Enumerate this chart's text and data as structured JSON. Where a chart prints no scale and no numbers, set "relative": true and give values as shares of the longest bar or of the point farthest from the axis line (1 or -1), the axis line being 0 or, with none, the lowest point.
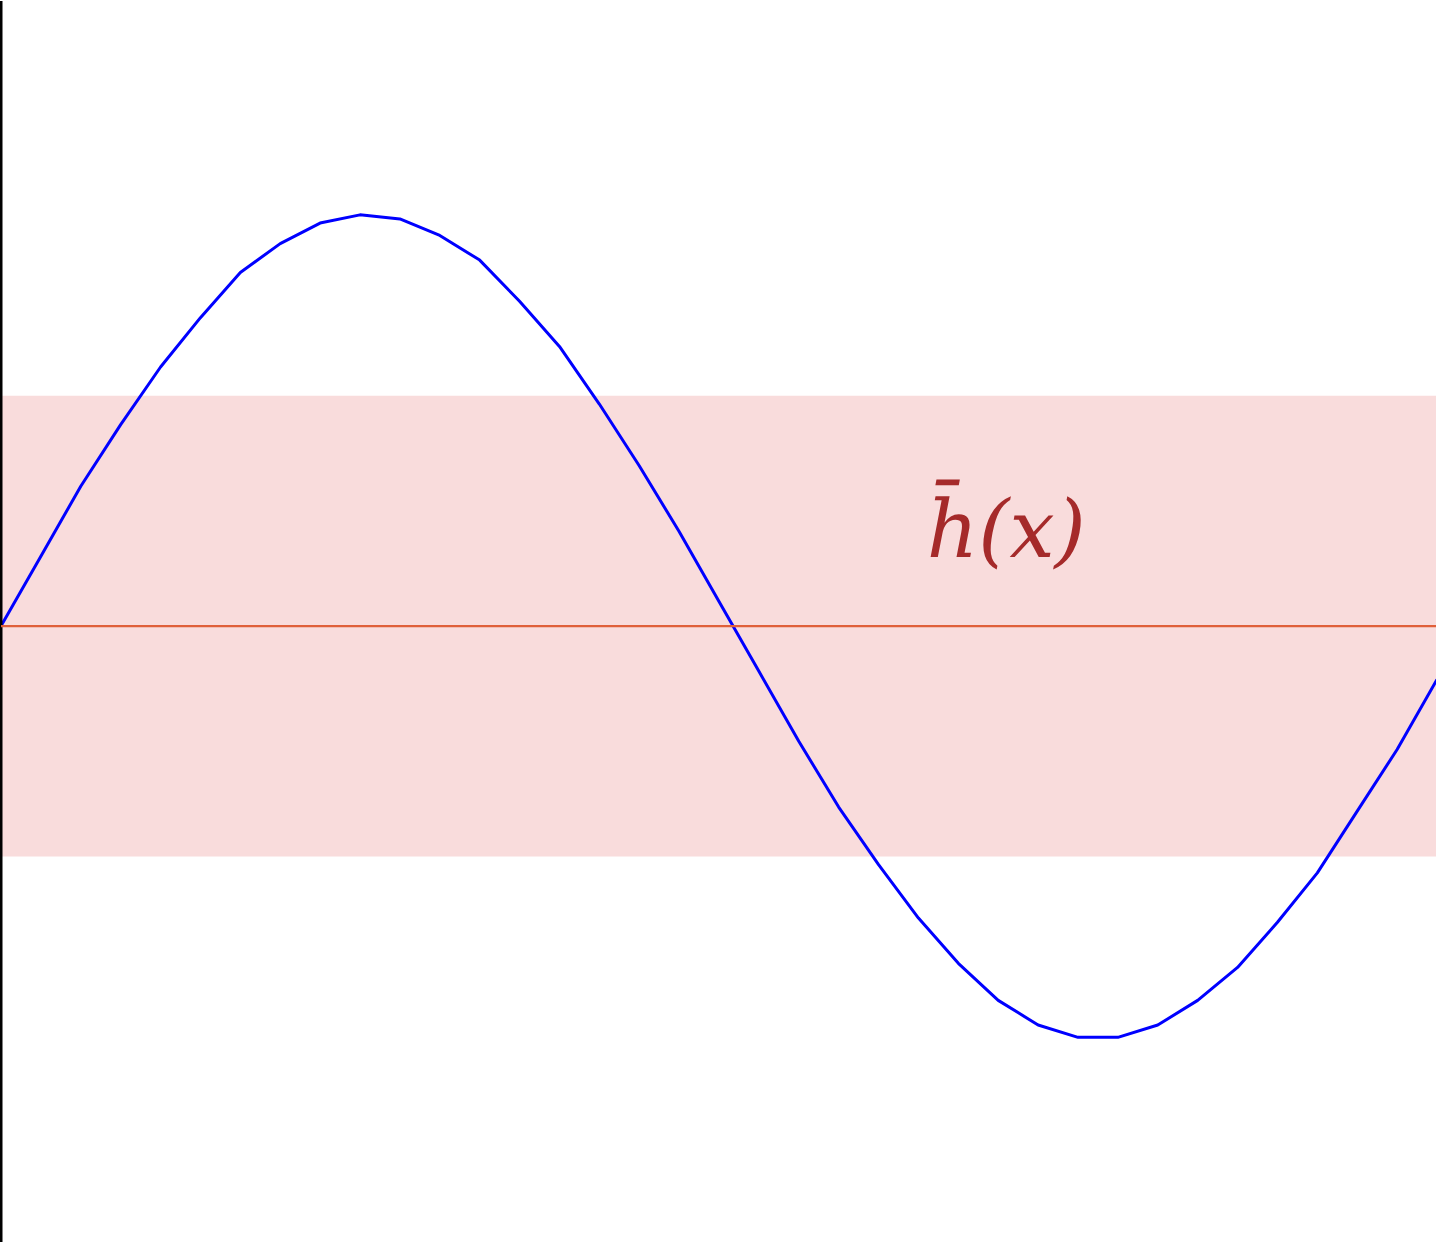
{
  "chart_data": {
    "type": "line",
    "relative": true,
    "grid": false,
    "categories": [
      null,
      null,
      null,
      null,
      null,
      null,
      null,
      null,
      null,
      null,
      null,
      null,
      null,
      null,
      null,
      null,
      null,
      null,
      null,
      null,
      null,
      null,
      null,
      null,
      null,
      null,
      null,
      null,
      null,
      null,
      null,
      null,
      null,
      null,
      null,
      null,
      null
    ],
    "series": [
      {
        "color": "#0000ff",
        "values": [
          0,
          0.17,
          0.34,
          0.49,
          0.63,
          0.75,
          0.86,
          0.93,
          0.98,
          1.0,
          0.99,
          0.95,
          0.89,
          0.79,
          0.68,
          0.54,
          0.39,
          0.23,
          0.06,
          -0.11,
          -0.28,
          -0.44,
          -0.58,
          -0.71,
          -0.82,
          -0.91,
          -0.97,
          -1.0,
          -1.0,
          -0.97,
          -0.91,
          -0.83,
          -0.72,
          -0.6,
          -0.45,
          -0.3,
          -0.13
        ]
      }
    ],
    "ref_lines": [
      {
        "axis": "y",
        "value": 0,
        "label": "h̄(x)",
        "color": "#e0603a"
      }
    ],
    "bands": [
      {
        "axis": "y",
        "from": -0.56,
        "to": 0.56,
        "color": "#f9dcdc"
      }
    ]
  }
}
